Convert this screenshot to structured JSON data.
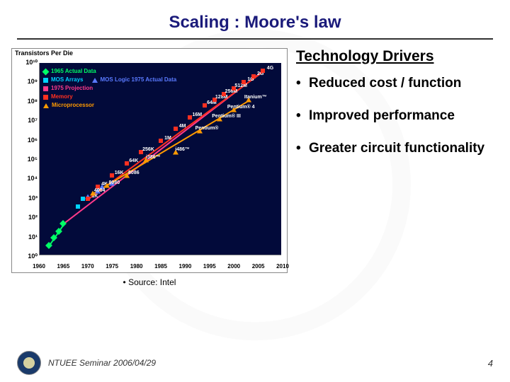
{
  "title": "Scaling : Moore's law",
  "drivers": {
    "heading": "Technology Drivers",
    "items": [
      "Reduced cost / function",
      "Improved performance",
      "Greater circuit functionality"
    ]
  },
  "source_label": "Source: Intel",
  "footer": {
    "text": "NTUEE Seminar 2006/04/29",
    "page": "4"
  },
  "chart": {
    "ylabel": "Transistors\nPer Die",
    "background_color": "#020a3a",
    "x": {
      "min": 1960,
      "max": 2010,
      "ticks": [
        1960,
        1965,
        1970,
        1975,
        1980,
        1985,
        1990,
        1995,
        2000,
        2005,
        2010
      ]
    },
    "y": {
      "min": 0,
      "max": 10,
      "labels": [
        "10⁰",
        "10¹",
        "10²",
        "10³",
        "10⁴",
        "10⁵",
        "10⁶",
        "10⁷",
        "10⁸",
        "10⁹",
        "10¹⁰"
      ]
    },
    "legend": [
      {
        "label": "1965 Actual Data",
        "color": "#00ff66",
        "shape": "diamond"
      },
      {
        "label": "MOS Arrays",
        "color": "#00d4ff",
        "shape": "square"
      },
      {
        "label": "MOS Logic 1975 Actual Data",
        "color": "#5a7aff",
        "shape": "triangle",
        "sameRow": true
      },
      {
        "label": "1975 Projection",
        "color": "#ff3a8a",
        "shape": "square"
      },
      {
        "label": "Memory",
        "color": "#ff3020",
        "shape": "square"
      },
      {
        "label": "Microprocessor",
        "color": "#ff9a00",
        "shape": "triangle"
      }
    ],
    "series": {
      "actual1965": {
        "color": "#00ff66",
        "shape": "diamond",
        "points": [
          [
            1962,
            0.6
          ],
          [
            1963,
            1.0
          ],
          [
            1964,
            1.3
          ],
          [
            1965,
            1.7
          ]
        ]
      },
      "mosArrays": {
        "color": "#00d4ff",
        "shape": "square",
        "points": [
          [
            1968,
            2.6
          ],
          [
            1969,
            3.0
          ]
        ]
      },
      "mosLogic": {
        "color": "#5a7aff",
        "shape": "triangle",
        "points": [
          [
            1970,
            3.1
          ],
          [
            1972,
            3.4
          ],
          [
            1973,
            3.6
          ],
          [
            1975,
            3.8
          ]
        ]
      },
      "memory": {
        "color": "#ff3020",
        "shape": "square",
        "points": [
          [
            1970,
            3.0,
            "1K"
          ],
          [
            1972,
            3.6,
            "4K"
          ],
          [
            1975,
            4.2,
            "16K"
          ],
          [
            1978,
            4.8,
            "64K"
          ],
          [
            1981,
            5.4,
            "256K"
          ],
          [
            1985,
            6.0,
            "1M"
          ],
          [
            1988,
            6.6,
            "4M"
          ],
          [
            1991,
            7.2,
            "16M"
          ],
          [
            1994,
            7.8,
            "64M"
          ],
          [
            1996,
            8.1,
            "128M"
          ],
          [
            1998,
            8.4,
            "256M"
          ],
          [
            2000,
            8.7,
            "512M"
          ],
          [
            2002,
            9.0,
            "1G"
          ],
          [
            2004,
            9.3,
            "2G"
          ],
          [
            2006,
            9.6,
            "4G"
          ]
        ]
      },
      "micro": {
        "color": "#ff9a00",
        "shape": "triangle",
        "points": [
          [
            1971,
            3.3,
            "4004"
          ],
          [
            1974,
            3.7,
            "8080"
          ],
          [
            1978,
            4.2,
            "8086"
          ],
          [
            1982,
            5.0,
            "i386™"
          ],
          [
            1988,
            5.4,
            "i486™"
          ],
          [
            1993,
            6.5,
            "Pentium®"
          ],
          [
            1997,
            7.1,
            "Pentium® III"
          ],
          [
            2000,
            7.6,
            "Pentium® 4"
          ],
          [
            2003,
            8.1,
            "Itanium™"
          ]
        ]
      }
    },
    "lines": [
      {
        "color": "#00ff66",
        "from": [
          1962,
          0.6
        ],
        "to": [
          1965,
          1.7
        ]
      },
      {
        "color": "#ff3a8a",
        "from": [
          1965,
          1.7
        ],
        "to": [
          2006,
          9.6
        ]
      },
      {
        "color": "#ff3020",
        "from": [
          1970,
          3.0
        ],
        "to": [
          2006,
          9.6
        ]
      },
      {
        "color": "#ff9a00",
        "from": [
          1971,
          3.3
        ],
        "to": [
          2003,
          8.1
        ]
      }
    ]
  }
}
